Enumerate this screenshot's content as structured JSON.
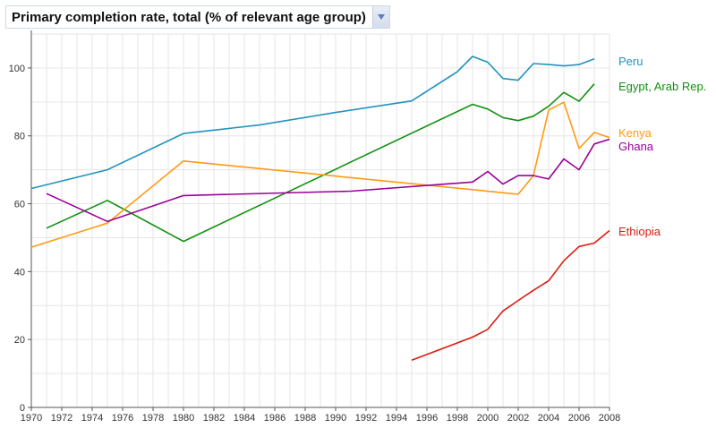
{
  "indicator": {
    "label": "Primary completion rate, total (% of relevant age group)",
    "dropdown_icon": "chevron-down-icon"
  },
  "colors": {
    "grid": "#e6e6e6",
    "axis": "#555555",
    "accent": "#2f6fce"
  },
  "chart_data": {
    "type": "line",
    "title": "Primary completion rate, total (% of relevant age group)",
    "xlabel": "",
    "ylabel": "",
    "xlim": [
      1970,
      2008
    ],
    "ylim": [
      0,
      110
    ],
    "grid": true,
    "legend": "right (inline labels)",
    "x_ticks": [
      1970,
      1972,
      1974,
      1976,
      1978,
      1980,
      1982,
      1984,
      1986,
      1988,
      1990,
      1992,
      1994,
      1996,
      1998,
      2000,
      2002,
      2004,
      2006,
      2008
    ],
    "y_ticks": [
      0,
      20,
      40,
      60,
      80,
      100
    ],
    "series": [
      {
        "name": "Peru",
        "color": "#1f93bf",
        "points": [
          [
            1970,
            64.5
          ],
          [
            1975,
            70
          ],
          [
            1980,
            80.7
          ],
          [
            1985,
            83.2
          ],
          [
            1990,
            86.9
          ],
          [
            1995,
            90.3
          ],
          [
            1998,
            98.9
          ],
          [
            1999,
            103.4
          ],
          [
            2000,
            101.7
          ],
          [
            2001,
            96.9
          ],
          [
            2002,
            96.4
          ],
          [
            2003,
            101.3
          ],
          [
            2004,
            101
          ],
          [
            2005,
            100.6
          ],
          [
            2006,
            101
          ],
          [
            2007,
            102.7
          ]
        ]
      },
      {
        "name": "Egypt, Arab Rep.",
        "color": "#119111",
        "points": [
          [
            1971,
            52.8
          ],
          [
            1975,
            61
          ],
          [
            1980,
            48.9
          ],
          [
            1999,
            89.3
          ],
          [
            2000,
            87.9
          ],
          [
            2001,
            85.4
          ],
          [
            2002,
            84.5
          ],
          [
            2003,
            85.8
          ],
          [
            2004,
            88.7
          ],
          [
            2005,
            92.8
          ],
          [
            2006,
            90.2
          ],
          [
            2007,
            95.3
          ]
        ]
      },
      {
        "name": "Kenya",
        "color": "#ff9a14",
        "points": [
          [
            1970,
            47.2
          ],
          [
            1975,
            54.3
          ],
          [
            1980,
            72.6
          ],
          [
            2002,
            62.8
          ],
          [
            2003,
            68.3
          ],
          [
            2004,
            87.6
          ],
          [
            2005,
            89.9
          ],
          [
            2006,
            76.3
          ],
          [
            2007,
            81
          ],
          [
            2008,
            79.5
          ]
        ]
      },
      {
        "name": "Ghana",
        "color": "#990099",
        "points": [
          [
            1971,
            63
          ],
          [
            1975,
            54.8
          ],
          [
            1980,
            62.4
          ],
          [
            1991,
            63.7
          ],
          [
            1999,
            66.4
          ],
          [
            2000,
            69.5
          ],
          [
            2001,
            65.8
          ],
          [
            2002,
            68.3
          ],
          [
            2003,
            68.3
          ],
          [
            2004,
            67.3
          ],
          [
            2005,
            73.2
          ],
          [
            2006,
            70
          ],
          [
            2007,
            77.6
          ],
          [
            2008,
            79
          ]
        ]
      },
      {
        "name": "Ethiopia",
        "color": "#e01a0f",
        "points": [
          [
            1995,
            13.9
          ],
          [
            1999,
            20.7
          ],
          [
            2000,
            23
          ],
          [
            2001,
            28.4
          ],
          [
            2002,
            31.5
          ],
          [
            2003,
            34.5
          ],
          [
            2004,
            37.3
          ],
          [
            2005,
            43.2
          ],
          [
            2006,
            47.4
          ],
          [
            2007,
            48.4
          ],
          [
            2008,
            52.1
          ]
        ]
      }
    ]
  }
}
